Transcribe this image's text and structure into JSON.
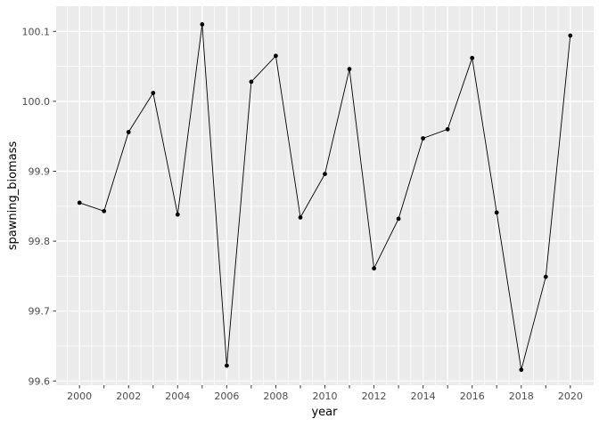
{
  "figure": {
    "background": "#FFFFFF",
    "panel_background": "#EBEBEB",
    "grid_color": "#FFFFFF",
    "tick_color": "#333333",
    "axis_text_color": "#4D4D4D",
    "axis_title_color": "#000000",
    "series_color": "#000000"
  },
  "chart_data": {
    "type": "line",
    "title": "",
    "xlabel": "year",
    "ylabel": "spawning_biomass",
    "x": [
      2000,
      2001,
      2002,
      2003,
      2004,
      2005,
      2006,
      2007,
      2008,
      2009,
      2010,
      2011,
      2012,
      2013,
      2014,
      2015,
      2016,
      2017,
      2018,
      2019,
      2020
    ],
    "y": [
      99.855,
      99.843,
      99.956,
      100.012,
      99.838,
      100.11,
      99.622,
      100.028,
      100.065,
      99.834,
      99.896,
      100.046,
      99.761,
      99.832,
      99.947,
      99.96,
      100.062,
      99.841,
      99.616,
      99.749,
      100.094
    ],
    "xlim": [
      1999.05,
      2020.95
    ],
    "ylim": [
      99.594,
      100.136
    ],
    "grid": "major+minor",
    "legend": "none",
    "marker": "filled-circle",
    "x_ticks": [
      2000,
      2001,
      2002,
      2003,
      2004,
      2005,
      2006,
      2007,
      2008,
      2009,
      2010,
      2011,
      2012,
      2013,
      2014,
      2015,
      2016,
      2017,
      2018,
      2019,
      2020
    ],
    "x_labels": [
      {
        "v": 2000,
        "t": "2000"
      },
      {
        "v": 2002,
        "t": "2002"
      },
      {
        "v": 2004,
        "t": "2004"
      },
      {
        "v": 2006,
        "t": "2006"
      },
      {
        "v": 2008,
        "t": "2008"
      },
      {
        "v": 2010,
        "t": "2010"
      },
      {
        "v": 2012,
        "t": "2012"
      },
      {
        "v": 2014,
        "t": "2014"
      },
      {
        "v": 2016,
        "t": "2016"
      },
      {
        "v": 2018,
        "t": "2018"
      },
      {
        "v": 2020,
        "t": "2020"
      }
    ],
    "x_minor": [
      1999.5,
      2000.5,
      2001.5,
      2002.5,
      2003.5,
      2004.5,
      2005.5,
      2006.5,
      2007.5,
      2008.5,
      2009.5,
      2010.5,
      2011.5,
      2012.5,
      2013.5,
      2014.5,
      2015.5,
      2016.5,
      2017.5,
      2018.5,
      2019.5,
      2020.5
    ],
    "y_labels": [
      {
        "v": 99.6,
        "t": "99.6"
      },
      {
        "v": 99.7,
        "t": "99.7"
      },
      {
        "v": 99.8,
        "t": "99.8"
      },
      {
        "v": 99.9,
        "t": "99.9"
      },
      {
        "v": 100.0,
        "t": "100.0"
      },
      {
        "v": 100.1,
        "t": "100.1"
      }
    ],
    "y_minor": [
      99.65,
      99.75,
      99.85,
      99.95,
      100.05
    ]
  }
}
